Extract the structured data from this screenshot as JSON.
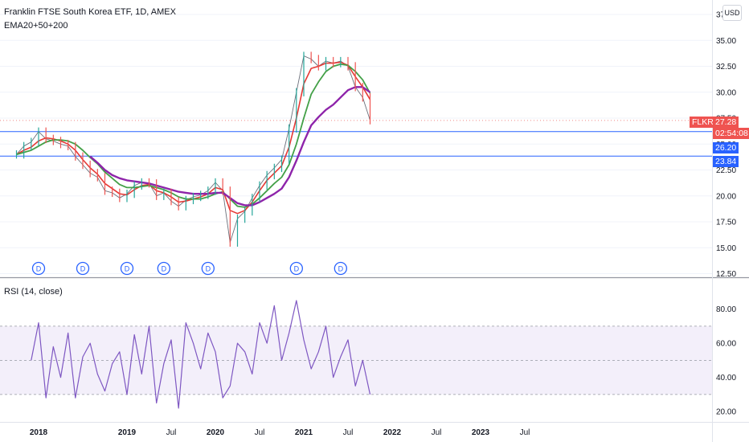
{
  "header": {
    "title": "Franklin FTSE South Korea ETF, 1D, AMEX",
    "indicator": "EMA20+50+200",
    "rsi_title": "RSI (14, close)",
    "currency_button": "USD"
  },
  "tags": {
    "symbol": "FLKR",
    "last_price": "27.28",
    "countdown": "02:54:08",
    "line_upper": "26.20",
    "line_lower": "23.84"
  },
  "colors": {
    "up": "#26a69a",
    "down": "#ef5350",
    "ema20": "#e53935",
    "ema50": "#43a047",
    "ema200": "#8e24aa",
    "rsi": "#7e57c2",
    "hline": "#2962ff",
    "rsi_band": "#f3effa"
  },
  "dividend_marker": "D",
  "chart_data": [
    {
      "type": "line",
      "title": "Franklin FTSE South Korea ETF, 1D, AMEX",
      "y_axis_ticks": [
        "37.50",
        "35.00",
        "32.50",
        "30.00",
        "27.50",
        "25.00",
        "22.50",
        "20.00",
        "17.50",
        "15.00",
        "12.50"
      ],
      "x_axis_ticks": [
        "2018",
        "2019",
        "Jul",
        "2020",
        "Jul",
        "2021",
        "Jul",
        "2022",
        "Jul",
        "2023",
        "Jul"
      ],
      "ylim": [
        12.5,
        37.5
      ],
      "x_dates": [
        "2017-10",
        "2017-11",
        "2017-12",
        "2018-01",
        "2018-02",
        "2018-03",
        "2018-04",
        "2018-05",
        "2018-06",
        "2018-07",
        "2018-08",
        "2018-09",
        "2018-10",
        "2018-11",
        "2018-12",
        "2019-01",
        "2019-02",
        "2019-03",
        "2019-04",
        "2019-05",
        "2019-06",
        "2019-07",
        "2019-08",
        "2019-09",
        "2019-10",
        "2019-11",
        "2019-12",
        "2020-01",
        "2020-02",
        "2020-03",
        "2020-04",
        "2020-05",
        "2020-06",
        "2020-07",
        "2020-08",
        "2020-09",
        "2020-10",
        "2020-11",
        "2020-12",
        "2021-01",
        "2021-02",
        "2021-03",
        "2021-04",
        "2021-05",
        "2021-06",
        "2021-07",
        "2021-08",
        "2021-09",
        "2021-10"
      ],
      "series": [
        {
          "values": [
            24.0,
            24.8,
            25.2,
            26.2,
            25.5,
            25.3,
            25.0,
            24.8,
            23.8,
            23.0,
            22.2,
            21.8,
            20.5,
            20.3,
            19.8,
            20.2,
            21.0,
            21.3,
            21.2,
            20.0,
            20.3,
            19.5,
            19.0,
            19.6,
            19.9,
            20.1,
            20.5,
            21.3,
            20.5,
            15.5,
            17.8,
            18.5,
            19.8,
            21.0,
            22.0,
            22.7,
            23.5,
            26.5,
            30.0,
            33.5,
            33.2,
            32.5,
            33.0,
            32.8,
            33.0,
            32.5,
            30.5,
            29.5,
            27.3
          ]
        },
        {
          "values": [
            24.0,
            24.4,
            24.7,
            25.3,
            25.6,
            25.5,
            25.3,
            25.0,
            24.4,
            23.5,
            22.7,
            22.1,
            21.2,
            20.7,
            20.2,
            20.1,
            20.6,
            21.0,
            21.1,
            20.5,
            20.3,
            19.9,
            19.4,
            19.5,
            19.7,
            19.9,
            20.2,
            20.8,
            20.6,
            18.6,
            18.3,
            18.6,
            19.4,
            20.5,
            21.5,
            22.2,
            22.9,
            24.7,
            27.5,
            30.8,
            32.3,
            32.5,
            32.8,
            32.8,
            32.9,
            32.6,
            31.5,
            30.5,
            29.3
          ]
        },
        {
          "values": [
            24.0,
            24.2,
            24.4,
            24.8,
            25.2,
            25.4,
            25.4,
            25.3,
            25.0,
            24.4,
            23.7,
            23.1,
            22.3,
            21.7,
            21.1,
            20.8,
            20.8,
            20.9,
            21.0,
            20.8,
            20.6,
            20.3,
            19.9,
            19.7,
            19.7,
            19.7,
            19.9,
            20.2,
            20.4,
            19.7,
            19.0,
            18.9,
            19.2,
            19.8,
            20.5,
            21.2,
            21.8,
            23.0,
            25.0,
            27.5,
            29.8,
            31.0,
            32.0,
            32.5,
            32.7,
            32.6,
            32.0,
            31.2,
            29.9
          ]
        },
        {
          "values": [
            null,
            null,
            null,
            null,
            null,
            null,
            null,
            null,
            null,
            null,
            23.8,
            23.2,
            22.5,
            22.0,
            21.7,
            21.5,
            21.4,
            21.3,
            21.2,
            21.0,
            20.8,
            20.6,
            20.4,
            20.3,
            20.2,
            20.2,
            20.2,
            20.3,
            20.3,
            19.8,
            19.3,
            19.1,
            19.1,
            19.4,
            19.8,
            20.2,
            20.7,
            21.8,
            23.4,
            25.2,
            26.8,
            27.6,
            28.3,
            28.8,
            29.5,
            30.2,
            30.5,
            30.5,
            30.0
          ]
        }
      ],
      "horizontal_lines": [
        26.2,
        23.84
      ],
      "last_price": 27.28,
      "dividends": [
        "2018-01",
        "2018-07",
        "2019-01",
        "2019-06",
        "2019-12",
        "2020-12",
        "2021-06"
      ]
    },
    {
      "type": "line",
      "title": "RSI (14, close)",
      "y_axis_ticks": [
        "80.00",
        "60.00",
        "40.00",
        "20.00"
      ],
      "ylim": [
        13,
        93
      ],
      "bands": {
        "upper": 70,
        "middle": 50,
        "lower": 30
      },
      "x_dates": [
        "2017-12",
        "2018-01",
        "2018-02",
        "2018-03",
        "2018-04",
        "2018-05",
        "2018-06",
        "2018-07",
        "2018-08",
        "2018-09",
        "2018-10",
        "2018-11",
        "2018-12",
        "2019-01",
        "2019-02",
        "2019-03",
        "2019-04",
        "2019-05",
        "2019-06",
        "2019-07",
        "2019-08",
        "2019-09",
        "2019-10",
        "2019-11",
        "2019-12",
        "2020-01",
        "2020-02",
        "2020-03",
        "2020-04",
        "2020-05",
        "2020-06",
        "2020-07",
        "2020-08",
        "2020-09",
        "2020-10",
        "2020-11",
        "2020-12",
        "2021-01",
        "2021-02",
        "2021-03",
        "2021-04",
        "2021-05",
        "2021-06",
        "2021-07",
        "2021-08",
        "2021-09",
        "2021-10"
      ],
      "values": [
        50,
        72,
        28,
        58,
        40,
        66,
        28,
        52,
        60,
        42,
        32,
        48,
        55,
        30,
        65,
        42,
        70,
        25,
        48,
        62,
        22,
        72,
        60,
        45,
        66,
        55,
        28,
        35,
        60,
        55,
        42,
        72,
        60,
        82,
        50,
        66,
        85,
        62,
        45,
        55,
        70,
        40,
        52,
        62,
        35,
        50,
        30
      ]
    }
  ]
}
